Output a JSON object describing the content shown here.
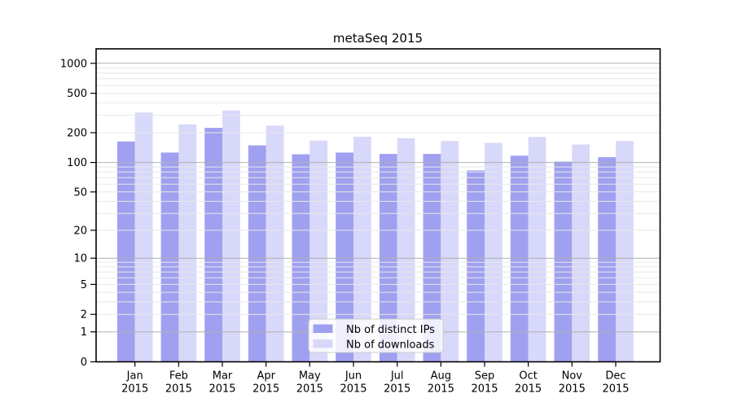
{
  "chart_data": {
    "type": "bar",
    "title": "metaSeq 2015",
    "categories": [
      "Jan",
      "Feb",
      "Mar",
      "Apr",
      "May",
      "Jun",
      "Jul",
      "Aug",
      "Sep",
      "Oct",
      "Nov",
      "Dec"
    ],
    "year_label": "2015",
    "series": [
      {
        "name": "Nb of distinct IPs",
        "color": "#a0a0f0",
        "values": [
          163,
          126,
          224,
          149,
          121,
          126,
          122,
          122,
          83,
          117,
          102,
          113
        ]
      },
      {
        "name": "Nb of downloads",
        "color": "#d8d8fa",
        "values": [
          320,
          243,
          335,
          236,
          167,
          182,
          176,
          165,
          158,
          181,
          152,
          165
        ]
      }
    ],
    "xlabel": "",
    "ylabel": "",
    "ylim": [
      0,
      1380
    ],
    "y_axis": {
      "scale": "log10(value+1)",
      "tick_values": [
        1000,
        500,
        200,
        100,
        50,
        20,
        10,
        5,
        2,
        1,
        0
      ],
      "major_grid_values": [
        1,
        10,
        100,
        1000
      ],
      "minor_grid_values": [
        2,
        3,
        4,
        5,
        6,
        7,
        8,
        9,
        20,
        30,
        40,
        50,
        60,
        70,
        80,
        90,
        200,
        300,
        400,
        500,
        600,
        700,
        800,
        900
      ]
    },
    "grid": true,
    "legend_position": "inside-bottom-center"
  },
  "palette": {
    "background": "#ffffff",
    "axis": "#000000",
    "major_grid": "#b0b0b0",
    "minor_grid": "#e8e8e8",
    "legend_bg": "rgba(255,255,255,0.82)",
    "legend_border": "#cccccc"
  }
}
